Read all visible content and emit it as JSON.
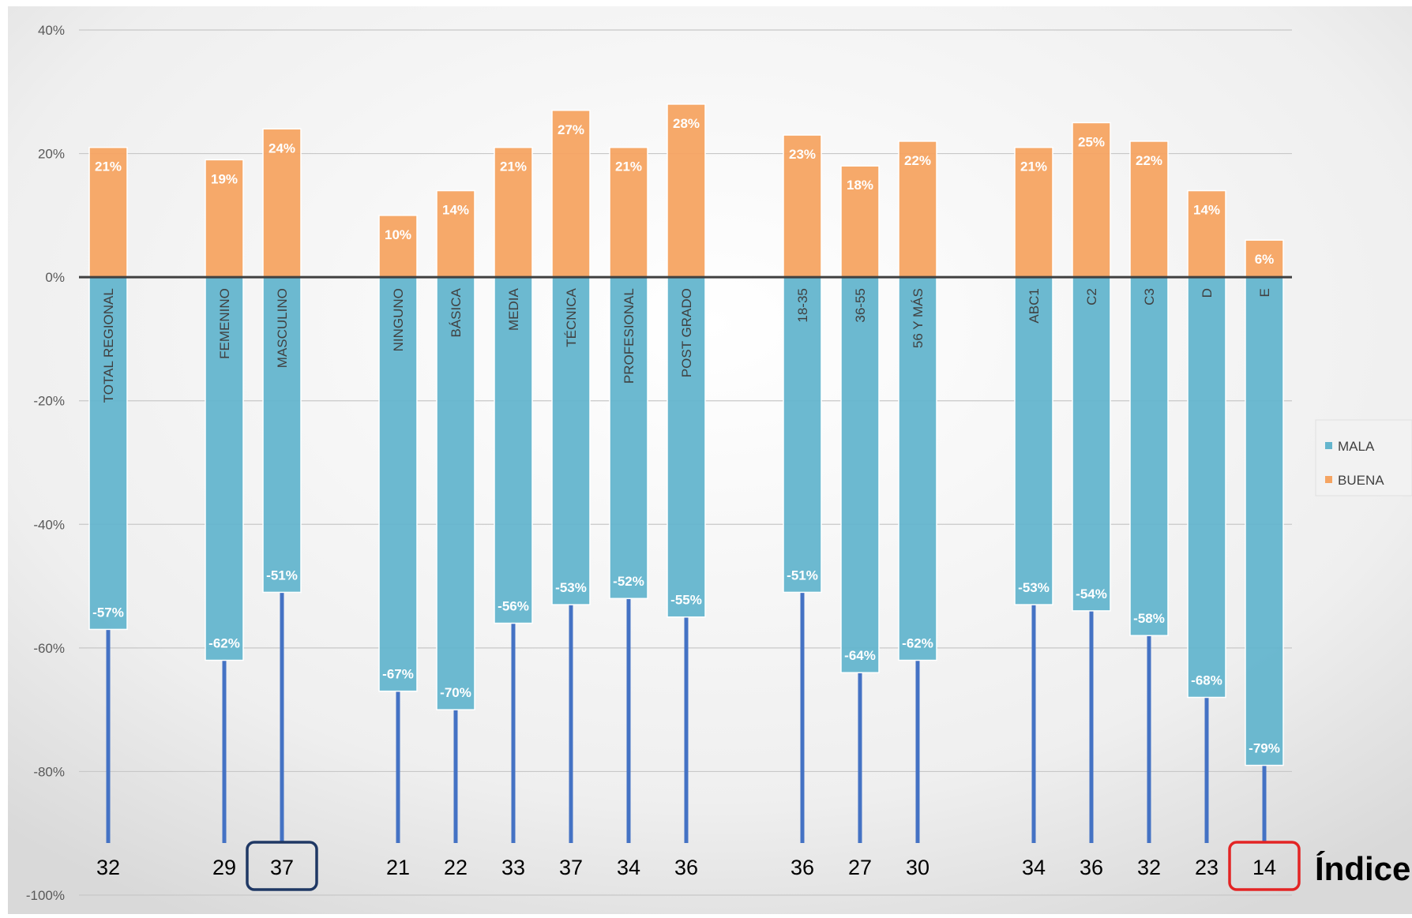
{
  "chart_data": {
    "type": "bar",
    "stacked": true,
    "categories": [
      "TOTAL REGIONAL",
      "FEMENINO",
      "MASCULINO",
      "NINGUNO",
      "BÁSICA",
      "MEDIA",
      "TÉCNICA",
      "PROFESIONAL",
      "POST GRADO",
      "18-35",
      "36-55",
      "56 Y MÁS",
      "ABC1",
      "C2",
      "C3",
      "D",
      "E"
    ],
    "groups": [
      [
        0
      ],
      [
        1,
        2
      ],
      [
        3,
        4,
        5,
        6,
        7,
        8
      ],
      [
        9,
        10,
        11
      ],
      [
        12,
        13,
        14,
        15,
        16
      ]
    ],
    "series": [
      {
        "name": "MALA",
        "color": "#64B5CD",
        "values": [
          -57,
          -62,
          -51,
          -67,
          -70,
          -56,
          -53,
          -52,
          -55,
          -51,
          -64,
          -62,
          -53,
          -54,
          -58,
          -68,
          -79
        ],
        "labels": [
          "-57%",
          "-62%",
          "-51%",
          "-67%",
          "-70%",
          "-56%",
          "-53%",
          "-52%",
          "-55%",
          "-51%",
          "-64%",
          "-62%",
          "-53%",
          "-54%",
          "-58%",
          "-68%",
          "-79%"
        ]
      },
      {
        "name": "BUENA",
        "color": "#F5A462",
        "values": [
          21,
          19,
          24,
          10,
          14,
          21,
          27,
          21,
          28,
          23,
          18,
          22,
          21,
          25,
          22,
          14,
          6
        ],
        "labels": [
          "21%",
          "19%",
          "24%",
          "10%",
          "14%",
          "21%",
          "27%",
          "21%",
          "28%",
          "23%",
          "18%",
          "22%",
          "21%",
          "25%",
          "22%",
          "14%",
          "6%"
        ]
      }
    ],
    "index_values": [
      "32",
      "29",
      "37",
      "21",
      "22",
      "33",
      "37",
      "34",
      "36",
      "36",
      "27",
      "30",
      "34",
      "36",
      "32",
      "23",
      "14"
    ],
    "index_title": "Índice",
    "highlights": [
      {
        "category_index": 2,
        "color": "#1F3864"
      },
      {
        "category_index": 16,
        "color": "#E32424"
      }
    ],
    "yticks": [
      "40%",
      "20%",
      "0%",
      "-20%",
      "-40%",
      "-60%",
      "-80%",
      "-100%"
    ],
    "ytick_values": [
      40,
      20,
      0,
      -20,
      -40,
      -60,
      -80,
      -100
    ],
    "ylim": [
      -100,
      40
    ],
    "grid": true,
    "legend_position": "right",
    "stem_color": "#4472C4",
    "axis_color": "#404040"
  }
}
